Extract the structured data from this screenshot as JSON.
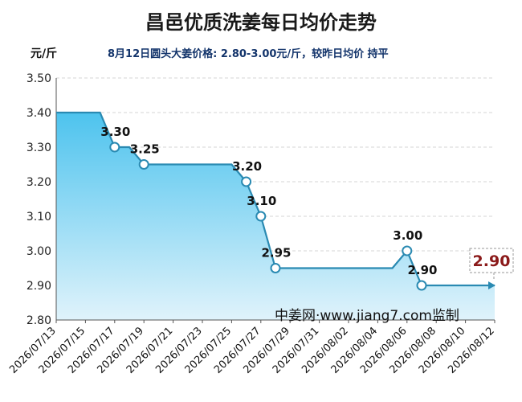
{
  "header": {
    "title": "昌邑优质洗姜每日均价走势",
    "unit": "元/斤",
    "subtitle": "8月12日圆头大姜价格: 2.80-3.00元/斤，较昨日均价 持平"
  },
  "watermark": "中姜网·www.jiang7.com监制",
  "colors": {
    "line": "#2a8ab2",
    "area_top": "#4dc3ee",
    "area_bottom": "#e0f3fb",
    "last_label": "#8b1a1a"
  },
  "chart_data": {
    "type": "area",
    "title": "昌邑优质洗姜每日均价走势",
    "ylabel": "元/斤",
    "xlabel": "",
    "ylim": [
      2.8,
      3.5
    ],
    "yticks": [
      "2.80",
      "2.90",
      "3.00",
      "3.10",
      "3.20",
      "3.30",
      "3.40",
      "3.50"
    ],
    "xticks": [
      "2026/07/13",
      "2026/07/15",
      "2026/07/17",
      "2026/07/19",
      "2026/07/21",
      "2026/07/23",
      "2026/07/25",
      "2026/07/27",
      "2026/07/29",
      "2026/07/31",
      "2026/08/02",
      "2026/08/04",
      "2026/08/06",
      "2026/08/08",
      "2026/08/10",
      "2026/08/12"
    ],
    "grid": true,
    "x": [
      "2026/07/13",
      "2026/07/16",
      "2026/07/17",
      "2026/07/18",
      "2026/07/19",
      "2026/07/25",
      "2026/07/26",
      "2026/07/27",
      "2026/07/28",
      "2026/08/05",
      "2026/08/06",
      "2026/08/07",
      "2026/08/12"
    ],
    "values": [
      3.4,
      3.4,
      3.3,
      3.3,
      3.25,
      3.25,
      3.2,
      3.1,
      2.95,
      2.95,
      3.0,
      2.9,
      2.9
    ],
    "data_labels": [
      {
        "x": "2026/07/17",
        "value": "3.30"
      },
      {
        "x": "2026/07/19",
        "value": "3.25"
      },
      {
        "x": "2026/07/26",
        "value": "3.20"
      },
      {
        "x": "2026/07/27",
        "value": "3.10"
      },
      {
        "x": "2026/07/28",
        "value": "2.95"
      },
      {
        "x": "2026/08/06",
        "value": "3.00"
      },
      {
        "x": "2026/08/07",
        "value": "2.90"
      }
    ],
    "last_value_label": "2.90"
  }
}
